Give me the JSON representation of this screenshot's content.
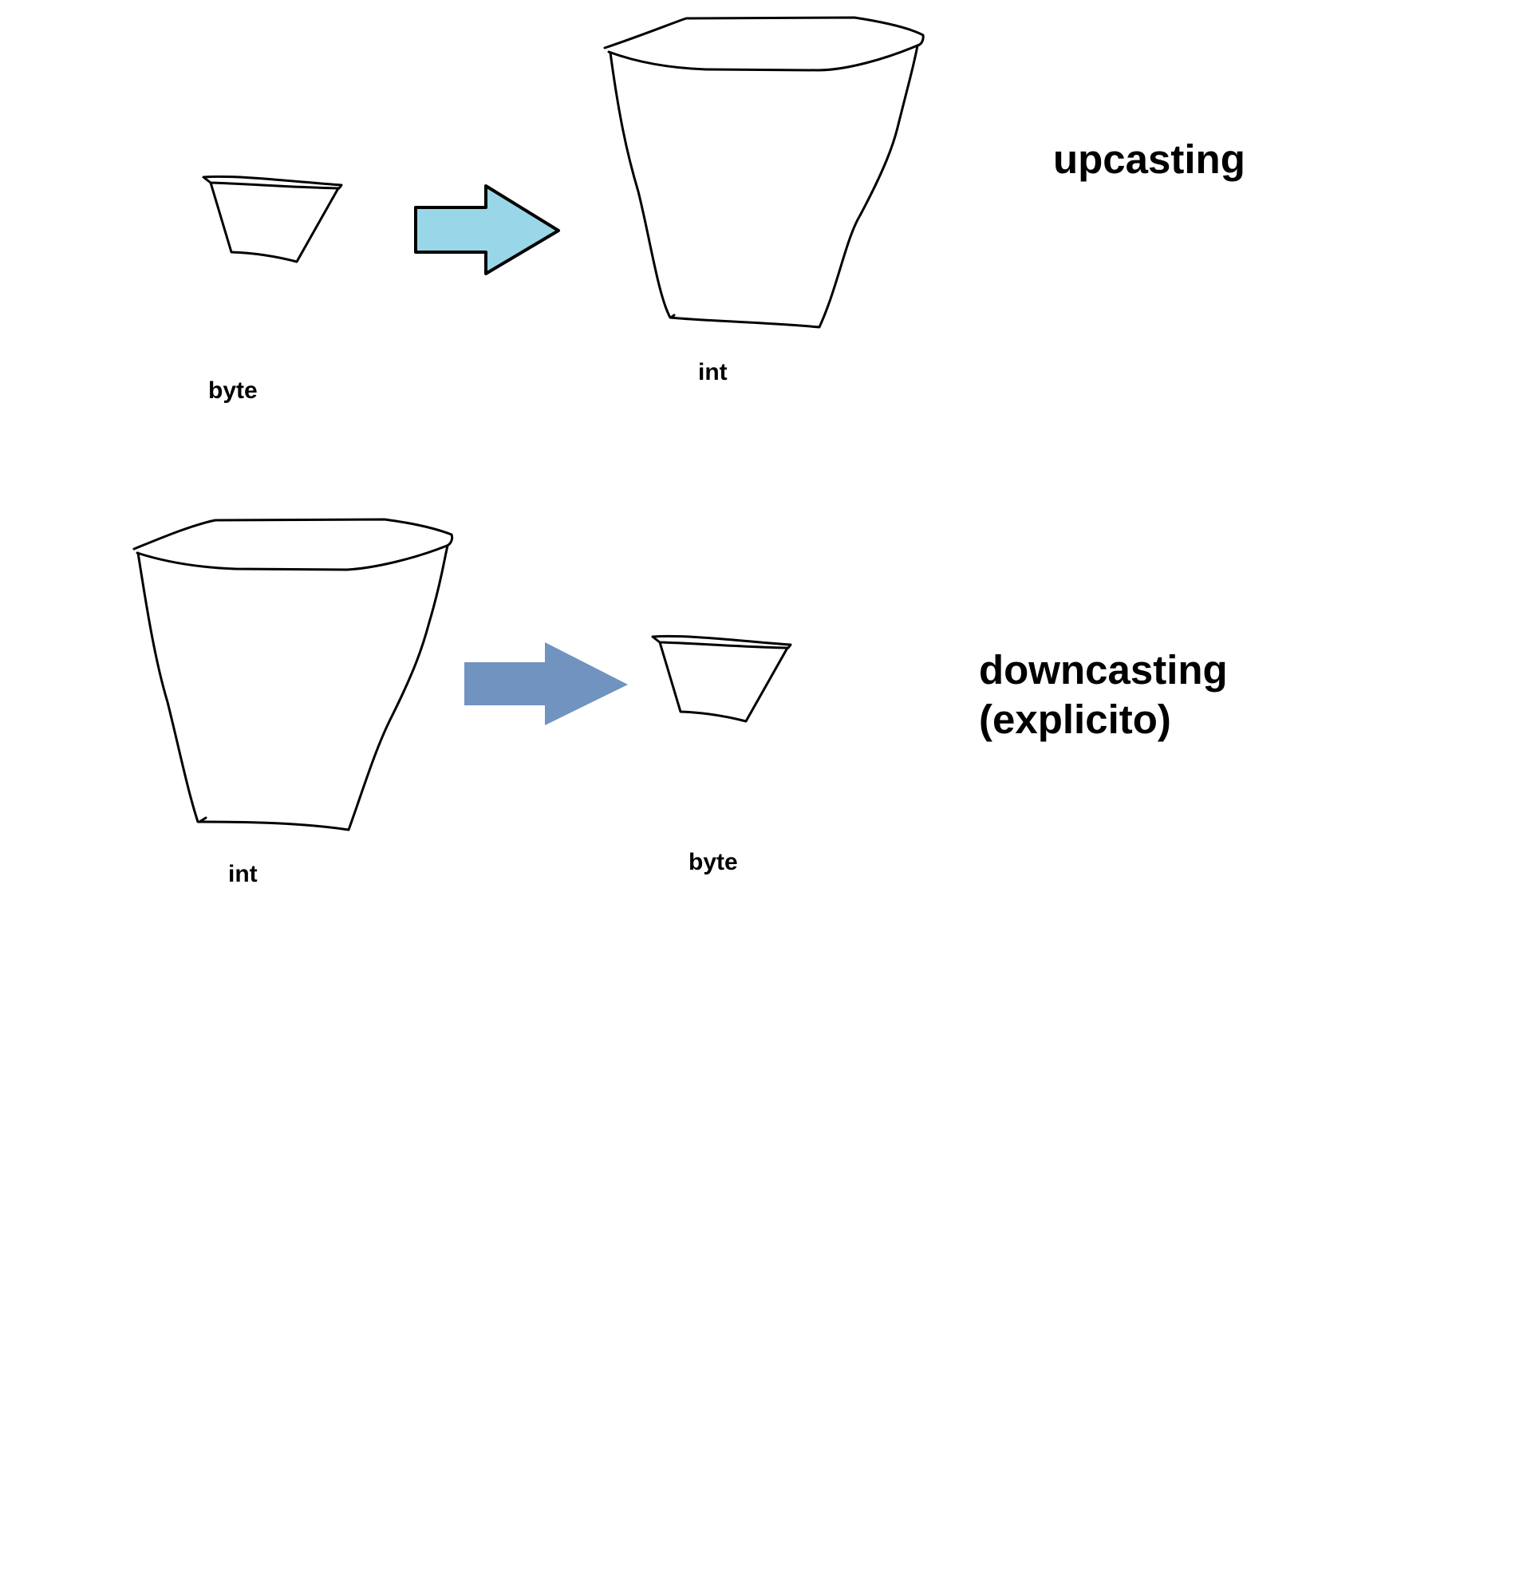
{
  "upcasting": {
    "title": "upcasting",
    "source_label": "byte",
    "target_label": "int",
    "arrow_color": "#99d7e8"
  },
  "downcasting": {
    "title_line1": "downcasting",
    "title_line2": "(explicito)",
    "source_label": "int",
    "target_label": "byte",
    "arrow_color": "#7093c0"
  }
}
